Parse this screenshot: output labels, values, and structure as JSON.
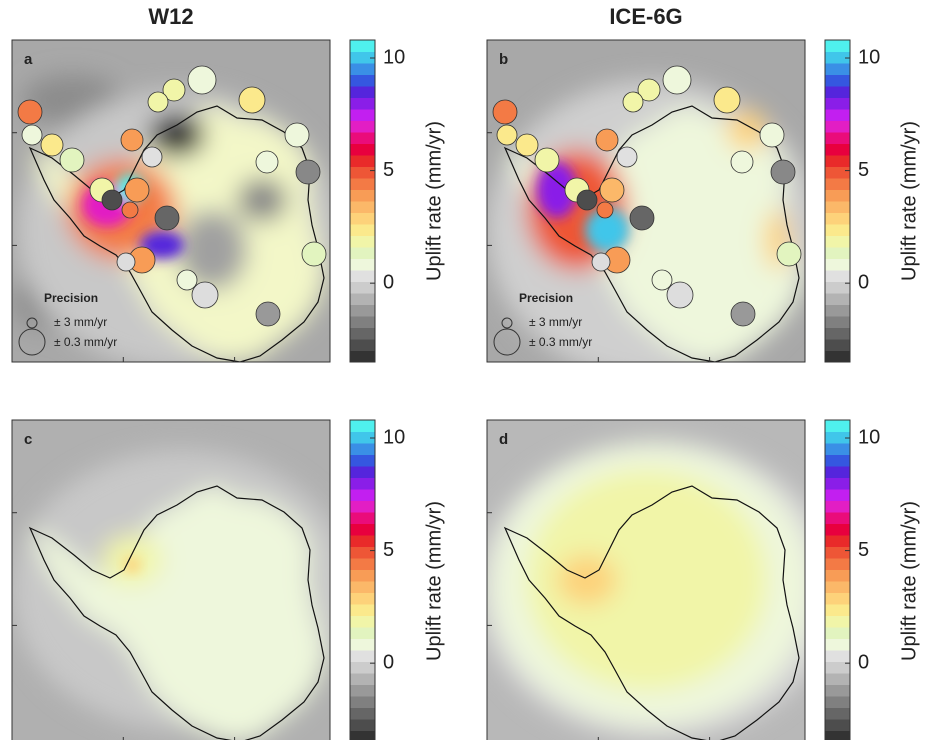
{
  "columns": [
    "W12",
    "ICE-6G"
  ],
  "panels": [
    {
      "label": "a",
      "column": 0,
      "precision": {
        "title": "Precision",
        "small": "± 3 mm/yr",
        "large": "± 0.3 mm/yr"
      }
    },
    {
      "label": "b",
      "column": 1,
      "precision": {
        "title": "Precision",
        "small": "± 3 mm/yr",
        "large": "± 0.3 mm/yr"
      }
    },
    {
      "label": "c",
      "column": 0
    },
    {
      "label": "d",
      "column": 1
    }
  ],
  "colorbar": {
    "label": "Uplift rate (mm/yr)",
    "lim": [
      -3.5,
      10.8
    ],
    "ticks": [
      0,
      5,
      10
    ],
    "colors": [
      "#333333",
      "#4d4d4d",
      "#666666",
      "#808080",
      "#999999",
      "#b3b3b3",
      "#cccccc",
      "#e0e0e0",
      "#eef7dc",
      "#e2f4bf",
      "#f1f5a8",
      "#fbe98c",
      "#fdd27a",
      "#fbb869",
      "#f89c56",
      "#f37a45",
      "#ee5636",
      "#e92a2a",
      "#e8003e",
      "#ea0c7a",
      "#e21ec4",
      "#c21ff0",
      "#8a1ee8",
      "#5525dc",
      "#3557e0",
      "#3a8fe6",
      "#40c6ea",
      "#4ff0ee"
    ]
  }
}
